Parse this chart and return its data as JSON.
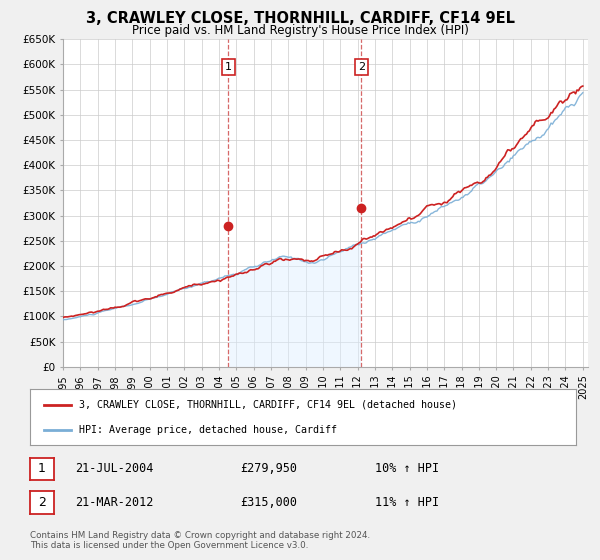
{
  "title": "3, CRAWLEY CLOSE, THORNHILL, CARDIFF, CF14 9EL",
  "subtitle": "Price paid vs. HM Land Registry's House Price Index (HPI)",
  "ylim": [
    0,
    650000
  ],
  "xlim_start": 1995.0,
  "xlim_end": 2025.3,
  "yticks": [
    0,
    50000,
    100000,
    150000,
    200000,
    250000,
    300000,
    350000,
    400000,
    450000,
    500000,
    550000,
    600000,
    650000
  ],
  "ytick_labels": [
    "£0",
    "£50K",
    "£100K",
    "£150K",
    "£200K",
    "£250K",
    "£300K",
    "£350K",
    "£400K",
    "£450K",
    "£500K",
    "£550K",
    "£600K",
    "£650K"
  ],
  "xticks": [
    1995,
    1996,
    1997,
    1998,
    1999,
    2000,
    2001,
    2002,
    2003,
    2004,
    2005,
    2006,
    2007,
    2008,
    2009,
    2010,
    2011,
    2012,
    2013,
    2014,
    2015,
    2016,
    2017,
    2018,
    2019,
    2020,
    2021,
    2022,
    2023,
    2024,
    2025
  ],
  "background_color": "#f0f0f0",
  "plot_bg_color": "#ffffff",
  "grid_color": "#cccccc",
  "line1_color": "#cc2222",
  "line2_color": "#7aaed6",
  "line2_fill_color": "#ddeeff",
  "shade_color": "#ddeeff",
  "sale1_x": 2004.55,
  "sale1_y": 279950,
  "sale2_x": 2012.22,
  "sale2_y": 315000,
  "sale1_label": "1",
  "sale2_label": "2",
  "legend_line1": "3, CRAWLEY CLOSE, THORNHILL, CARDIFF, CF14 9EL (detached house)",
  "legend_line2": "HPI: Average price, detached house, Cardiff",
  "annotation1_date": "21-JUL-2004",
  "annotation1_price": "£279,950",
  "annotation1_hpi": "10% ↑ HPI",
  "annotation2_date": "21-MAR-2012",
  "annotation2_price": "£315,000",
  "annotation2_hpi": "11% ↑ HPI",
  "footer": "Contains HM Land Registry data © Crown copyright and database right 2024.\nThis data is licensed under the Open Government Licence v3.0."
}
